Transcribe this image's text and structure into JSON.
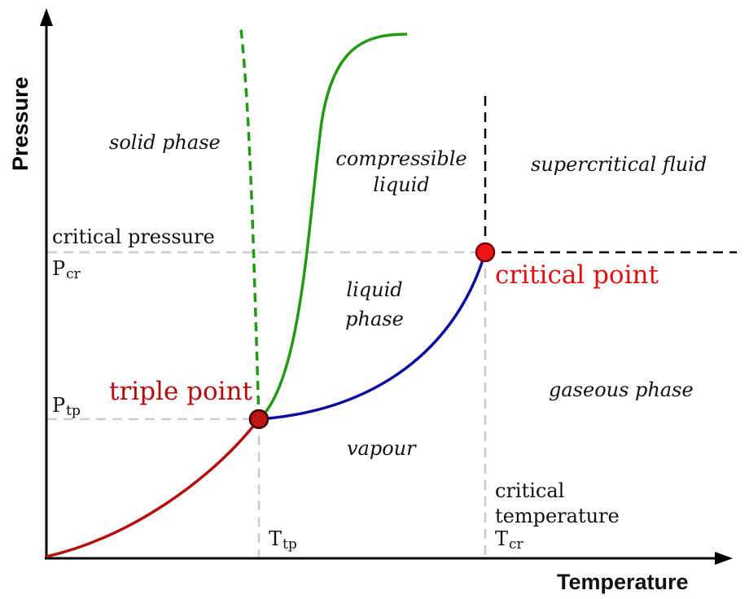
{
  "axes": {
    "x_label": "Temperature",
    "y_label": "Pressure"
  },
  "colors": {
    "melting_curve": "#229a14",
    "sublimation_curve": "#b31010",
    "vaporization_curve": "#0b0f9b",
    "triple_point_fill": "#c01515",
    "critical_point_fill": "#ee1616",
    "point_label": "#b30a0a",
    "critical_label": "#e01010",
    "guide_line": "#cccccc"
  },
  "phases": {
    "solid": "solid phase",
    "compressible_liquid_1": "compressible",
    "compressible_liquid_2": "liquid",
    "liquid_1": "liquid",
    "liquid_2": "phase",
    "supercritical": "supercritical fluid",
    "gaseous": "gaseous phase",
    "vapour": "vapour"
  },
  "points": {
    "triple": "triple point",
    "critical": "critical point"
  },
  "levels": {
    "critical_pressure": "critical pressure",
    "p_cr_main": "P",
    "p_cr_sub": "cr",
    "p_tp_main": "P",
    "p_tp_sub": "tp",
    "critical_temperature_1": "critical",
    "critical_temperature_2": "temperature",
    "t_cr_main": "T",
    "t_cr_sub": "cr",
    "t_tp_main": "T",
    "t_tp_sub": "tp"
  }
}
